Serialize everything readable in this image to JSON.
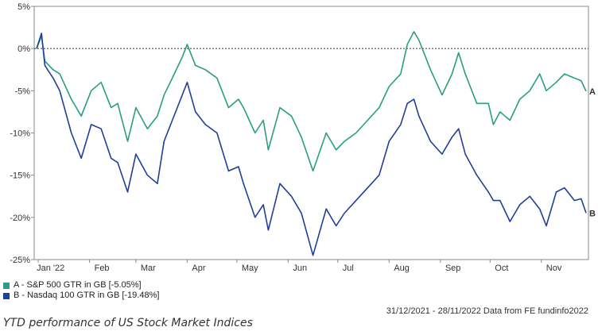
{
  "chart_data": {
    "type": "line",
    "x_ticks": [
      "Jan '22",
      "Feb",
      "Mar",
      "Apr",
      "May",
      "Jun",
      "Jul",
      "Aug",
      "Sep",
      "Oct",
      "Nov"
    ],
    "y_ticks": [
      "5%",
      "0%",
      "-5%",
      "-10%",
      "-15%",
      "-20%",
      "-25%"
    ],
    "ylim": [
      -25,
      5
    ],
    "x_range": [
      "2021-12-31",
      "2022-11-28"
    ],
    "reference_line_y": 0,
    "grid": false,
    "series": [
      {
        "name": "A - S&P 500 GTR in GB [-5.05%]",
        "label": "A",
        "color": "#2a9d82",
        "points": [
          [
            "2021-12-31",
            0
          ],
          [
            "2022-01-03",
            1.5
          ],
          [
            "2022-01-05",
            -1.5
          ],
          [
            "2022-01-10",
            -2.5
          ],
          [
            "2022-01-14",
            -3
          ],
          [
            "2022-01-21",
            -6
          ],
          [
            "2022-01-27",
            -8
          ],
          [
            "2022-02-02",
            -5
          ],
          [
            "2022-02-08",
            -4
          ],
          [
            "2022-02-14",
            -7
          ],
          [
            "2022-02-18",
            -6.5
          ],
          [
            "2022-02-24",
            -11
          ],
          [
            "2022-03-01",
            -7
          ],
          [
            "2022-03-08",
            -9.5
          ],
          [
            "2022-03-14",
            -8
          ],
          [
            "2022-03-18",
            -5.5
          ],
          [
            "2022-03-23",
            -3.5
          ],
          [
            "2022-03-29",
            -1
          ],
          [
            "2022-04-01",
            0.5
          ],
          [
            "2022-04-06",
            -2
          ],
          [
            "2022-04-12",
            -2.5
          ],
          [
            "2022-04-19",
            -3.5
          ],
          [
            "2022-04-26",
            -7
          ],
          [
            "2022-05-02",
            -6
          ],
          [
            "2022-05-05",
            -7
          ],
          [
            "2022-05-12",
            -10
          ],
          [
            "2022-05-17",
            -8.5
          ],
          [
            "2022-05-20",
            -12
          ],
          [
            "2022-05-27",
            -7
          ],
          [
            "2022-06-03",
            -8
          ],
          [
            "2022-06-09",
            -10.5
          ],
          [
            "2022-06-16",
            -14.5
          ],
          [
            "2022-06-24",
            -10
          ],
          [
            "2022-06-30",
            -12
          ],
          [
            "2022-07-05",
            -11
          ],
          [
            "2022-07-12",
            -10
          ],
          [
            "2022-07-19",
            -8.5
          ],
          [
            "2022-07-26",
            -7
          ],
          [
            "2022-08-01",
            -4.5
          ],
          [
            "2022-08-08",
            -3
          ],
          [
            "2022-08-12",
            0.5
          ],
          [
            "2022-08-16",
            2
          ],
          [
            "2022-08-19",
            1
          ],
          [
            "2022-08-26",
            -2.5
          ],
          [
            "2022-09-02",
            -5.5
          ],
          [
            "2022-09-08",
            -3
          ],
          [
            "2022-09-12",
            -0.5
          ],
          [
            "2022-09-16",
            -3
          ],
          [
            "2022-09-23",
            -6.5
          ],
          [
            "2022-09-30",
            -6.5
          ],
          [
            "2022-10-03",
            -9
          ],
          [
            "2022-10-07",
            -7.5
          ],
          [
            "2022-10-13",
            -8.5
          ],
          [
            "2022-10-19",
            -6
          ],
          [
            "2022-10-25",
            -5
          ],
          [
            "2022-10-31",
            -3
          ],
          [
            "2022-11-04",
            -5
          ],
          [
            "2022-11-10",
            -4
          ],
          [
            "2022-11-15",
            -3
          ],
          [
            "2022-11-21",
            -3.5
          ],
          [
            "2022-11-25",
            -3.8
          ],
          [
            "2022-11-28",
            -5.05
          ]
        ]
      },
      {
        "name": "B - Nasdaq 100 GTR in GB [-19.48%]",
        "label": "B",
        "color": "#1f3f99",
        "points": [
          [
            "2021-12-31",
            0
          ],
          [
            "2022-01-03",
            1.8
          ],
          [
            "2022-01-05",
            -2
          ],
          [
            "2022-01-10",
            -3.5
          ],
          [
            "2022-01-14",
            -5
          ],
          [
            "2022-01-21",
            -10
          ],
          [
            "2022-01-27",
            -13
          ],
          [
            "2022-02-02",
            -9
          ],
          [
            "2022-02-08",
            -9.5
          ],
          [
            "2022-02-14",
            -13
          ],
          [
            "2022-02-18",
            -13.5
          ],
          [
            "2022-02-24",
            -17
          ],
          [
            "2022-03-01",
            -12.5
          ],
          [
            "2022-03-08",
            -15
          ],
          [
            "2022-03-14",
            -16
          ],
          [
            "2022-03-18",
            -11
          ],
          [
            "2022-03-23",
            -8.5
          ],
          [
            "2022-03-29",
            -5.5
          ],
          [
            "2022-04-01",
            -4
          ],
          [
            "2022-04-06",
            -7.5
          ],
          [
            "2022-04-12",
            -9
          ],
          [
            "2022-04-19",
            -10
          ],
          [
            "2022-04-26",
            -14.5
          ],
          [
            "2022-05-02",
            -14
          ],
          [
            "2022-05-05",
            -16
          ],
          [
            "2022-05-12",
            -20
          ],
          [
            "2022-05-17",
            -18.5
          ],
          [
            "2022-05-20",
            -21.5
          ],
          [
            "2022-05-27",
            -16
          ],
          [
            "2022-06-03",
            -17.5
          ],
          [
            "2022-06-09",
            -19.5
          ],
          [
            "2022-06-16",
            -24.5
          ],
          [
            "2022-06-24",
            -19
          ],
          [
            "2022-06-30",
            -21
          ],
          [
            "2022-07-05",
            -19.5
          ],
          [
            "2022-07-12",
            -18
          ],
          [
            "2022-07-19",
            -16.5
          ],
          [
            "2022-07-26",
            -15
          ],
          [
            "2022-08-01",
            -11
          ],
          [
            "2022-08-08",
            -9
          ],
          [
            "2022-08-12",
            -6.5
          ],
          [
            "2022-08-16",
            -6
          ],
          [
            "2022-08-19",
            -8
          ],
          [
            "2022-08-26",
            -11
          ],
          [
            "2022-09-02",
            -12.5
          ],
          [
            "2022-09-08",
            -10.5
          ],
          [
            "2022-09-12",
            -9.5
          ],
          [
            "2022-09-16",
            -12.5
          ],
          [
            "2022-09-23",
            -15
          ],
          [
            "2022-09-30",
            -17
          ],
          [
            "2022-10-03",
            -18
          ],
          [
            "2022-10-07",
            -18
          ],
          [
            "2022-10-13",
            -20.5
          ],
          [
            "2022-10-19",
            -18.5
          ],
          [
            "2022-10-25",
            -17.5
          ],
          [
            "2022-10-31",
            -19
          ],
          [
            "2022-11-04",
            -21
          ],
          [
            "2022-11-10",
            -17
          ],
          [
            "2022-11-15",
            -16.5
          ],
          [
            "2022-11-21",
            -18
          ],
          [
            "2022-11-25",
            -17.8
          ],
          [
            "2022-11-28",
            -19.48
          ]
        ]
      }
    ]
  },
  "footer": {
    "date_range": "31/12/2021 - 28/11/2022 Data from FE fundinfo2022"
  },
  "caption": "YTD performance of US Stock Market Indices"
}
